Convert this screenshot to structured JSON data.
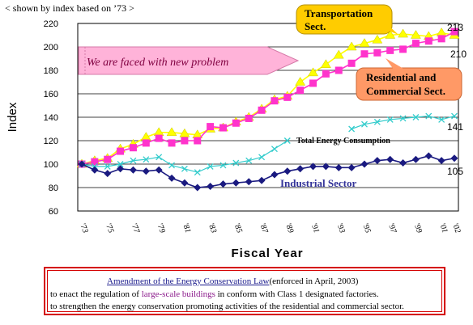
{
  "caption": "< shown by index based on ’73 >",
  "chart_data": {
    "type": "line",
    "ylabel": "Index",
    "xlabel": "Fiscal Year",
    "ylim": [
      60,
      220
    ],
    "yticks": [
      60,
      80,
      100,
      120,
      140,
      160,
      180,
      200,
      220
    ],
    "categories": [
      "'73",
      "'74",
      "'75",
      "'76",
      "'77",
      "'78",
      "'79",
      "'80",
      "'81",
      "'82",
      "'83",
      "'84",
      "'85",
      "'86",
      "'87",
      "'88",
      "'89",
      "'90",
      "'91",
      "'92",
      "'93",
      "'94",
      "'95",
      "'96",
      "'97",
      "'98",
      "'99",
      "'00",
      "'01",
      "'02"
    ],
    "xtick_labels": [
      "'73",
      "'75",
      "'77",
      "'79",
      "'81",
      "'83",
      "'85",
      "'87",
      "'89",
      "'91",
      "'93",
      "'95",
      "'97",
      "'99",
      "'01",
      "'02"
    ],
    "grid": "horizontal",
    "series": [
      {
        "name": "Transportation Sect.",
        "color": "#ffff00",
        "marker": "triangle",
        "values": [
          100,
          103,
          105,
          113,
          117,
          123,
          127,
          127,
          126,
          125,
          130,
          131,
          136,
          140,
          147,
          155,
          158,
          170,
          178,
          185,
          193,
          200,
          203,
          206,
          210,
          211,
          210,
          209,
          212,
          210
        ]
      },
      {
        "name": "Residential and Commercial Sect.",
        "color": "#ff33cc",
        "marker": "square",
        "values": [
          100,
          102,
          104,
          111,
          114,
          118,
          122,
          118,
          120,
          120,
          132,
          131,
          135,
          139,
          146,
          154,
          157,
          163,
          169,
          177,
          180,
          186,
          194,
          195,
          197,
          198,
          203,
          205,
          207,
          213
        ]
      },
      {
        "name": "Total Energy Consumption",
        "color": "#33cccc",
        "marker": "x",
        "values": [
          100,
          98,
          98,
          100,
          103,
          104,
          106,
          99,
          96,
          93,
          98,
          99,
          101,
          103,
          106,
          113,
          120,
          null,
          null,
          null,
          null,
          130,
          134,
          136,
          138,
          139,
          140,
          141,
          138,
          141
        ]
      },
      {
        "name": "Industrial Sector",
        "color": "#1a1a80",
        "marker": "diamond",
        "values": [
          100,
          95,
          92,
          96,
          95,
          94,
          95,
          88,
          84,
          80,
          81,
          83,
          84,
          85,
          86,
          91,
          94,
          96,
          98,
          98,
          97,
          97,
          100,
          103,
          104,
          101,
          104,
          107,
          103,
          105
        ]
      }
    ],
    "annotations": {
      "problem_banner": "We are faced with new problem",
      "transport_label": "Transportation Sect.",
      "transport_label_lines": [
        "Transportation",
        "Sect."
      ],
      "residential_label_lines": [
        "Residential and",
        "Commercial Sect."
      ],
      "total_label": "Total Energy Consumption",
      "industrial_label": "Industrial Sector",
      "value_213": "213",
      "value_210": "210",
      "value_141": "141",
      "value_105": "105"
    },
    "colors": {
      "callout_fill": "#ffcc00",
      "callout_border": "#b38f00",
      "residential_callout_fill": "#ff9966",
      "banner_fill": "#ffb3d9",
      "banner_text": "#800040"
    }
  },
  "note": {
    "line1_link": "Amendment of the Energy Conservation Law",
    "line1_rest": "(enforced in April, 2003)",
    "line2_pre": "to enact the regulation of ",
    "line2_purple": "large-scale buildings",
    "line2_post": " in conform with Class 1 designated factories.",
    "line3": "to strengthen the energy conservation promoting activities of the residential and commercial sector."
  }
}
